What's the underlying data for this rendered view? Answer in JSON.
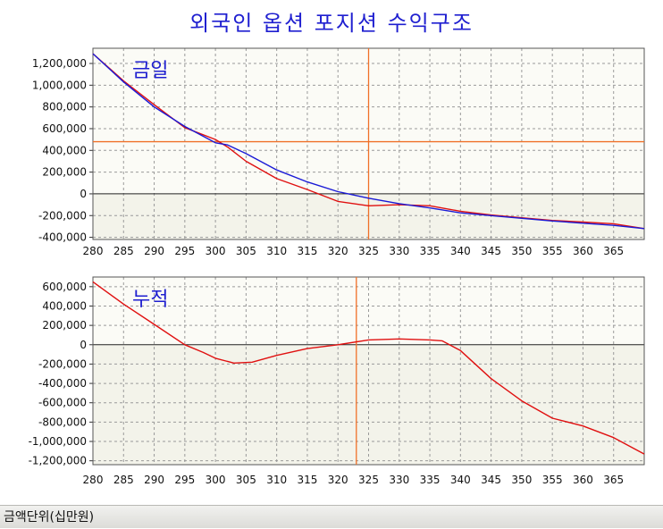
{
  "title": "외국인 옵션 포지션 수익구조",
  "status_bar": {
    "unit_label": "금액단위(십만원)"
  },
  "colors": {
    "title": "#1f1fd0",
    "label": "#1f1fd0",
    "red": "#e01010",
    "blue": "#1a1ad6",
    "crosshair": "#f07028",
    "plot_bg": "#fbfbf6",
    "plot_bg_below": "#f3f3ea",
    "grid": "#9a9a9a"
  },
  "chart_data": [
    {
      "type": "line",
      "label": "금일",
      "x_ticks": [
        280,
        285,
        290,
        295,
        300,
        305,
        310,
        315,
        320,
        325,
        330,
        335,
        340,
        345,
        350,
        355,
        360,
        365
      ],
      "xlim": [
        280,
        370
      ],
      "ylim": [
        -420000,
        1340000
      ],
      "y_ticks": [
        -400000,
        -200000,
        0,
        200000,
        400000,
        600000,
        800000,
        1000000,
        1200000
      ],
      "y_tick_labels": [
        "-400,000",
        "-200,000",
        "0",
        "200,000",
        "400,000",
        "600,000",
        "800,000",
        "1,000,000",
        "1,200,000"
      ],
      "crosshair": {
        "x": 325,
        "y": 480000
      },
      "series": [
        {
          "color": "red",
          "x": [
            280,
            285,
            290,
            295,
            300,
            302,
            305,
            310,
            315,
            320,
            325,
            330,
            335,
            340,
            345,
            350,
            355,
            360,
            365,
            370
          ],
          "y": [
            1290000,
            1040000,
            820000,
            610000,
            500000,
            430000,
            300000,
            140000,
            40000,
            -70000,
            -110000,
            -100000,
            -110000,
            -160000,
            -195000,
            -220000,
            -245000,
            -260000,
            -275000,
            -320000
          ]
        },
        {
          "color": "blue",
          "x": [
            280,
            285,
            290,
            295,
            300,
            302,
            305,
            310,
            315,
            320,
            325,
            330,
            335,
            340,
            345,
            350,
            355,
            360,
            365,
            370
          ],
          "y": [
            1290000,
            1030000,
            800000,
            620000,
            470000,
            450000,
            370000,
            220000,
            110000,
            20000,
            -40000,
            -90000,
            -130000,
            -175000,
            -200000,
            -225000,
            -250000,
            -270000,
            -290000,
            -320000
          ]
        }
      ]
    },
    {
      "type": "line",
      "label": "누적",
      "x_ticks": [
        280,
        285,
        290,
        295,
        300,
        305,
        310,
        315,
        320,
        325,
        330,
        335,
        340,
        345,
        350,
        355,
        360,
        365
      ],
      "xlim": [
        280,
        370
      ],
      "ylim": [
        -1240000,
        700000
      ],
      "y_ticks": [
        -1200000,
        -1000000,
        -800000,
        -600000,
        -400000,
        -200000,
        0,
        200000,
        400000,
        600000
      ],
      "y_tick_labels": [
        "-1,200,000",
        "-1,000,000",
        "-800,000",
        "-600,000",
        "-400,000",
        "-200,000",
        "0",
        "200,000",
        "400,000",
        "600,000"
      ],
      "crosshair": {
        "x": 323
      },
      "series": [
        {
          "color": "red",
          "x": [
            280,
            285,
            290,
            295,
            298,
            300,
            303,
            306,
            310,
            315,
            320,
            325,
            330,
            335,
            337,
            340,
            345,
            350,
            355,
            360,
            365,
            370
          ],
          "y": [
            650000,
            420000,
            210000,
            0,
            -80000,
            -140000,
            -190000,
            -180000,
            -110000,
            -40000,
            0,
            50000,
            60000,
            50000,
            40000,
            -60000,
            -350000,
            -580000,
            -760000,
            -840000,
            -960000,
            -1130000
          ]
        }
      ]
    }
  ]
}
